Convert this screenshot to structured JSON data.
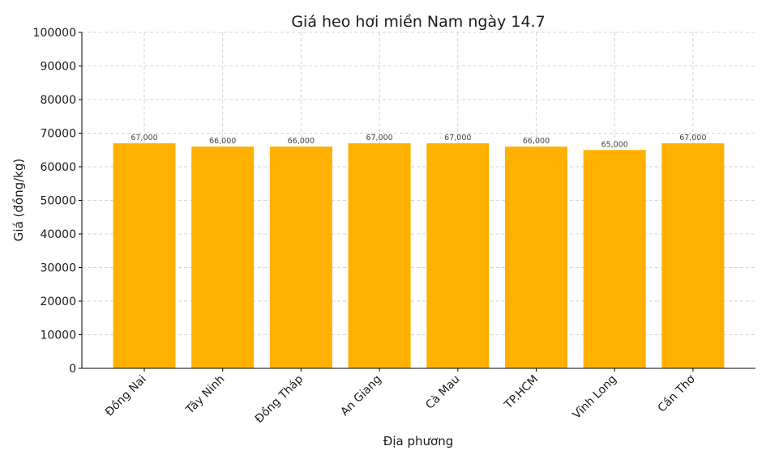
{
  "chart_data": {
    "type": "bar",
    "title": "Giá heo hơi miền Nam ngày 14.7",
    "xlabel": "Địa phương",
    "ylabel": "Giá (đồng/kg)",
    "categories": [
      "Đồng Nai",
      "Tây Ninh",
      "Đồng Tháp",
      "An Giang",
      "Cà Mau",
      "TP.HCM",
      "Vĩnh Long",
      "Cần Thơ"
    ],
    "values": [
      67000,
      66000,
      66000,
      67000,
      67000,
      66000,
      65000,
      67000
    ],
    "value_labels": [
      "67,000",
      "66,000",
      "66,000",
      "67,000",
      "67,000",
      "66,000",
      "65,000",
      "67,000"
    ],
    "ylim": [
      0,
      100000
    ],
    "yticks": [
      0,
      10000,
      20000,
      30000,
      40000,
      50000,
      60000,
      70000,
      80000,
      90000,
      100000
    ],
    "grid": true,
    "bar_color": "#FFB000"
  }
}
